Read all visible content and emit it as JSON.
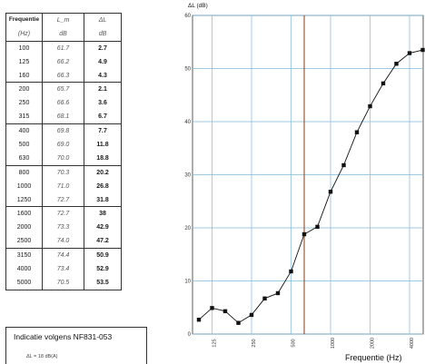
{
  "table": {
    "headers": [
      "Frequentie",
      "L_m",
      "ΔL"
    ],
    "units": [
      "(Hz)",
      "dB",
      "dB"
    ],
    "groups": [
      [
        [
          "100",
          "61.7",
          "2.7"
        ],
        [
          "125",
          "66.2",
          "4.9"
        ],
        [
          "160",
          "66.3",
          "4.3"
        ]
      ],
      [
        [
          "200",
          "65.7",
          "2.1"
        ],
        [
          "250",
          "66.6",
          "3.6"
        ],
        [
          "315",
          "68.1",
          "6.7"
        ]
      ],
      [
        [
          "400",
          "69.8",
          "7.7"
        ],
        [
          "500",
          "69.0",
          "11.8"
        ],
        [
          "630",
          "70.0",
          "18.8"
        ]
      ],
      [
        [
          "800",
          "70.3",
          "20.2"
        ],
        [
          "1000",
          "71.0",
          "26.8"
        ],
        [
          "1250",
          "72.7",
          "31.8"
        ]
      ],
      [
        [
          "1600",
          "72.7",
          "38"
        ],
        [
          "2000",
          "73.3",
          "42.9"
        ],
        [
          "2500",
          "74.0",
          "47.2"
        ]
      ],
      [
        [
          "3150",
          "74.4",
          "50.9"
        ],
        [
          "4000",
          "73.4",
          "52.9"
        ],
        [
          "5000",
          "70.5",
          "53.5"
        ]
      ]
    ]
  },
  "note": {
    "title": "Indicatie volgens NF831-053",
    "value": "ΔL = 18 dB(A)"
  },
  "chart_data": {
    "type": "line",
    "ylabel": "ΔL (dB)",
    "xlabel": "Frequentie (Hz)",
    "x": [
      "100",
      "125",
      "160",
      "200",
      "250",
      "315",
      "400",
      "500",
      "630",
      "800",
      "1000",
      "1250",
      "1600",
      "2000",
      "2500",
      "3150",
      "4000",
      "5000"
    ],
    "series": [
      {
        "values": [
          2.7,
          4.9,
          4.3,
          2.1,
          3.6,
          6.7,
          7.7,
          11.8,
          18.8,
          20.2,
          26.8,
          31.8,
          38,
          42.9,
          47.2,
          50.9,
          52.9,
          53.5
        ]
      }
    ],
    "ylim": [
      0,
      60
    ],
    "yticks": [
      0,
      10,
      20,
      30,
      40,
      50,
      60
    ],
    "xtick_labels": [
      "125",
      "250",
      "500",
      "1000",
      "2000",
      "4000"
    ],
    "grid": true,
    "colors": {
      "line": "#111111",
      "grid": "#7fb8d8",
      "marker_line": "#8a3b12"
    }
  }
}
